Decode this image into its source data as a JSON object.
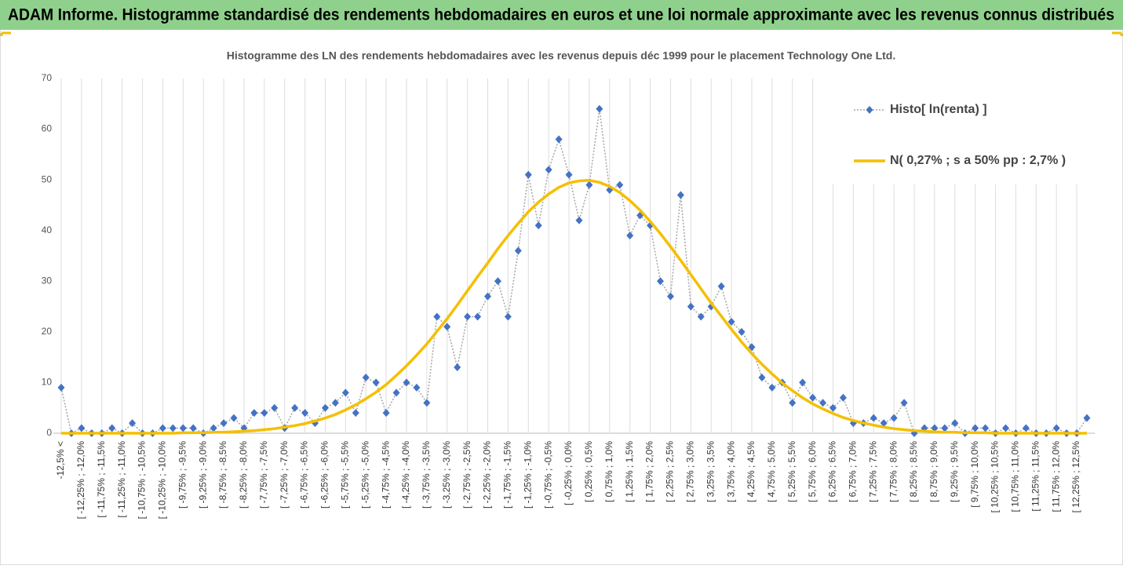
{
  "banner": "ADAM Informe. Histogramme standardisé des rendements hebdomadaires en euros et une loi normale approximante avec les revenus connus distribués",
  "chart_data": {
    "type": "line",
    "title": "Histogramme des LN des rendements hebdomadaires avec les revenus depuis déc 1999 pour le placement Technology One Ltd.",
    "categories": [
      "-12,5% <",
      null,
      "[ -12,25% ; -12,0%",
      null,
      "[ -11,75% ; -11,5%",
      null,
      "[ -11,25% ; -11,0%",
      null,
      "[ -10,75% ; -10,5%",
      null,
      "[ -10,25% ; -10,0%",
      null,
      "[ -9,75% ; -9,5%",
      null,
      "[ -9,25% ; -9,0%",
      null,
      "[ -8,75% ; -8,5%",
      null,
      "[ -8,25% ; -8,0%",
      null,
      "[ -7,75% ; -7,5%",
      null,
      "[ -7,25% ; -7,0%",
      null,
      "[ -6,75% ; -6,5%",
      null,
      "[ -6,25% ; -6,0%",
      null,
      "[ -5,75% ; -5,5%",
      null,
      "[ -5,25% ; -5,0%",
      null,
      "[ -4,75% ; -4,5%",
      null,
      "[ -4,25% ; -4,0%",
      null,
      "[ -3,75% ; -3,5%",
      null,
      "[ -3,25% ; -3,0%",
      null,
      "[ -2,75% ; -2,5%",
      null,
      "[ -2,25% ; -2,0%",
      null,
      "[ -1,75% ; -1,5%",
      null,
      "[ -1,25% ; -1,0%",
      null,
      "[ -0,75% ; -0,5%",
      null,
      "[ -0,25% ; 0,0%",
      null,
      "[ 0,25% ; 0,5%",
      null,
      "[ 0,75% ; 1,0%",
      null,
      "[ 1,25% ; 1,5%",
      null,
      "[ 1,75% ; 2,0%",
      null,
      "[ 2,25% ; 2,5%",
      null,
      "[ 2,75% ; 3,0%",
      null,
      "[ 3,25% ; 3,5%",
      null,
      "[ 3,75% ; 4,0%",
      null,
      "[ 4,25% ; 4,5%",
      null,
      "[ 4,75% ; 5,0%",
      null,
      "[ 5,25% ; 5,5%",
      null,
      "[ 5,75% ; 6,0%",
      null,
      "[ 6,25% ; 6,5%",
      null,
      "[ 6,75% ; 7,0%",
      null,
      "[ 7,25% ; 7,5%",
      null,
      "[ 7,75% ; 8,0%",
      null,
      "[ 8,25% ; 8,5%",
      null,
      "[ 8,75% ; 9,0%",
      null,
      "[ 9,25% ; 9,5%",
      null,
      "[ 9,75% ; 10,0%",
      null,
      "[ 10,25% ; 10,5%",
      null,
      "[ 10,75% ; 11,0%",
      null,
      "[ 11,25% ; 11,5%",
      null,
      "[ 11,75% ; 12,0%",
      null,
      "[ 12,25% ; 12,5%",
      null
    ],
    "series": [
      {
        "name": "Histo[ ln(renta) ]",
        "color": "#4472c4",
        "values": [
          9,
          0,
          1,
          0,
          0,
          1,
          0,
          2,
          0,
          0,
          1,
          1,
          1,
          1,
          0,
          1,
          2,
          3,
          1,
          4,
          4,
          5,
          1,
          5,
          4,
          2,
          5,
          6,
          8,
          4,
          11,
          10,
          4,
          8,
          10,
          9,
          6,
          23,
          21,
          13,
          23,
          23,
          27,
          30,
          23,
          36,
          51,
          41,
          52,
          58,
          51,
          42,
          49,
          64,
          48,
          49,
          39,
          43,
          41,
          30,
          27,
          47,
          25,
          23,
          25,
          29,
          22,
          20,
          17,
          11,
          9,
          10,
          6,
          10,
          7,
          6,
          5,
          7,
          2,
          2,
          3,
          2,
          3,
          6,
          0,
          1,
          1,
          1,
          2,
          0,
          1,
          1,
          0,
          1,
          0,
          1,
          0,
          0,
          1,
          0,
          0,
          3
        ]
      },
      {
        "name": "N( 0,27% ; s a 50% pp : 2,7% )",
        "color": "#f5bf00",
        "values": [
          0,
          0,
          0,
          0,
          0,
          0,
          0,
          0,
          0,
          0,
          0,
          0,
          0.1,
          0.1,
          0.1,
          0.2,
          0.2,
          0.3,
          0.4,
          0.5,
          0.7,
          0.9,
          1.2,
          1.5,
          1.9,
          2.4,
          3.0,
          3.7,
          4.6,
          5.6,
          6.8,
          8.1,
          9.6,
          11.4,
          13.3,
          15.4,
          17.6,
          20.1,
          22.6,
          25.3,
          28.1,
          30.9,
          33.6,
          36.4,
          39.0,
          41.4,
          43.7,
          45.6,
          47.2,
          48.5,
          49.4,
          49.8,
          49.9,
          49.5,
          48.7,
          47.5,
          45.9,
          44.0,
          41.8,
          39.4,
          36.8,
          34.1,
          31.3,
          28.5,
          25.7,
          23.1,
          20.5,
          18.0,
          15.7,
          13.6,
          11.7,
          9.9,
          8.4,
          7.0,
          5.8,
          4.8,
          3.9,
          3.1,
          2.5,
          2.0,
          1.6,
          1.2,
          0.9,
          0.7,
          0.5,
          0.4,
          0.3,
          0.2,
          0.2,
          0.1,
          0.1,
          0.1,
          0,
          0,
          0,
          0,
          0,
          0,
          0,
          0,
          0,
          0
        ]
      }
    ],
    "ylim": [
      0,
      70
    ],
    "yticks": [
      0,
      10,
      20,
      30,
      40,
      50,
      60,
      70
    ],
    "grid": "x",
    "legend": "top-right"
  }
}
